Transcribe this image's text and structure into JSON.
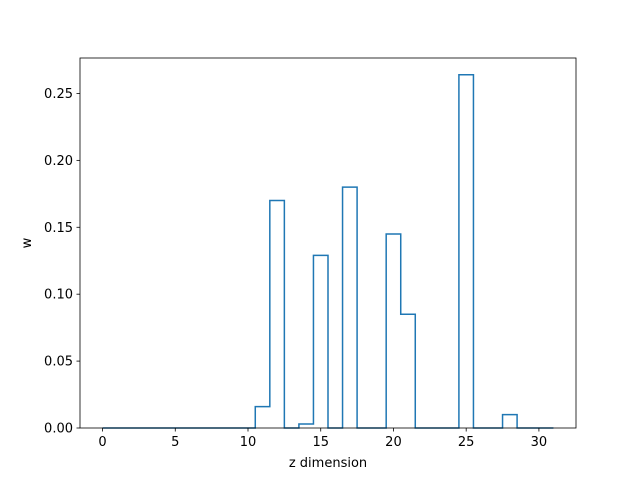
{
  "chart_data": {
    "type": "step",
    "title": "",
    "xlabel": "z dimension",
    "ylabel": "w",
    "xlim": [
      -1.55,
      32.55
    ],
    "ylim": [
      0.0,
      0.2765
    ],
    "x_ticks": [
      0,
      5,
      10,
      15,
      20,
      25,
      30
    ],
    "x_tick_labels": [
      "0",
      "5",
      "10",
      "15",
      "20",
      "25",
      "30"
    ],
    "y_ticks": [
      0.0,
      0.05,
      0.1,
      0.15,
      0.2,
      0.25
    ],
    "y_tick_labels": [
      "0.00",
      "0.05",
      "0.10",
      "0.15",
      "0.20",
      "0.25"
    ],
    "grid": false,
    "legend": false,
    "series": [
      {
        "color": "#1f77b4",
        "x": [
          0,
          1,
          2,
          3,
          4,
          5,
          6,
          7,
          8,
          9,
          10,
          11,
          12,
          13,
          14,
          15,
          16,
          17,
          18,
          19,
          20,
          21,
          22,
          23,
          24,
          25,
          26,
          27,
          28,
          29,
          30,
          31
        ],
        "values": [
          0.0,
          0.0,
          0.0,
          0.0,
          0.0,
          0.0,
          0.0,
          0.0,
          0.0,
          0.0,
          0.0,
          0.016,
          0.17,
          0.0,
          0.003,
          0.129,
          0.0,
          0.18,
          0.0,
          0.0,
          0.145,
          0.085,
          0.0,
          0.0,
          0.0,
          0.264,
          0.0,
          0.0,
          0.01,
          0.0,
          0.0,
          0.0
        ]
      }
    ]
  }
}
